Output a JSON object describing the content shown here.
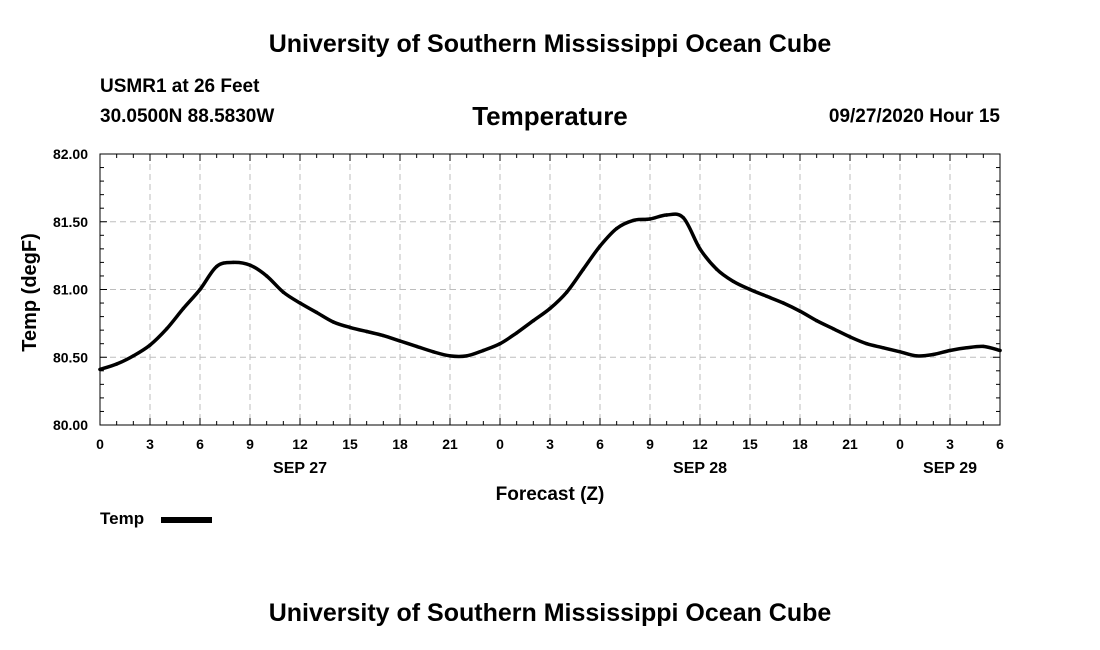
{
  "header": {
    "title": "University of Southern Mississippi Ocean Cube",
    "station": "USMR1 at 26 Feet",
    "coordinates": "30.0500N 88.5830W",
    "datetime": "09/27/2020 Hour 15"
  },
  "footer": {
    "title": "University of Southern Mississippi Ocean Cube"
  },
  "chart_data": {
    "type": "line",
    "title": "Temperature",
    "xlabel": "Forecast (Z)",
    "ylabel": "Temp (degF)",
    "xlim": [
      0,
      54
    ],
    "ylim": [
      80.0,
      82.0
    ],
    "grid": true,
    "x_ticks": [
      0,
      3,
      6,
      9,
      12,
      15,
      18,
      21,
      24,
      27,
      30,
      33,
      36,
      39,
      42,
      45,
      48,
      51,
      54
    ],
    "x_tick_labels": [
      "0",
      "3",
      "6",
      "9",
      "12",
      "15",
      "18",
      "21",
      "0",
      "3",
      "6",
      "9",
      "12",
      "15",
      "18",
      "21",
      "0",
      "3",
      "6"
    ],
    "y_ticks": [
      80.0,
      80.5,
      81.0,
      81.5,
      82.0
    ],
    "y_tick_labels": [
      "80.00",
      "80.50",
      "81.00",
      "81.50",
      "82.00"
    ],
    "date_labels": [
      {
        "x": 12,
        "label": "SEP 27"
      },
      {
        "x": 36,
        "label": "SEP 28"
      },
      {
        "x": 51,
        "label": "SEP 29"
      }
    ],
    "legend": {
      "position": "bottom-left",
      "entries": [
        "Temp"
      ]
    },
    "series": [
      {
        "name": "Temp",
        "color": "#000000",
        "x": [
          0,
          1,
          2,
          3,
          4,
          5,
          6,
          7,
          8,
          9,
          10,
          11,
          12,
          13,
          14,
          15,
          16,
          17,
          18,
          19,
          20,
          21,
          22,
          23,
          24,
          25,
          26,
          27,
          28,
          29,
          30,
          31,
          32,
          33,
          34,
          35,
          36,
          37,
          38,
          39,
          40,
          41,
          42,
          43,
          44,
          45,
          46,
          47,
          48,
          49,
          50,
          51,
          52,
          53,
          54
        ],
        "values": [
          80.41,
          80.45,
          80.51,
          80.59,
          80.71,
          80.86,
          81.0,
          81.17,
          81.2,
          81.18,
          81.1,
          80.98,
          80.9,
          80.83,
          80.76,
          80.72,
          80.69,
          80.66,
          80.62,
          80.58,
          80.54,
          80.51,
          80.51,
          80.55,
          80.6,
          80.68,
          80.77,
          80.86,
          80.98,
          81.15,
          81.32,
          81.45,
          81.51,
          81.52,
          81.55,
          81.53,
          81.3,
          81.15,
          81.06,
          81.0,
          80.95,
          80.9,
          80.84,
          80.77,
          80.71,
          80.65,
          80.6,
          80.57,
          80.54,
          80.51,
          80.52,
          80.55,
          80.57,
          80.58,
          80.55
        ]
      }
    ]
  }
}
